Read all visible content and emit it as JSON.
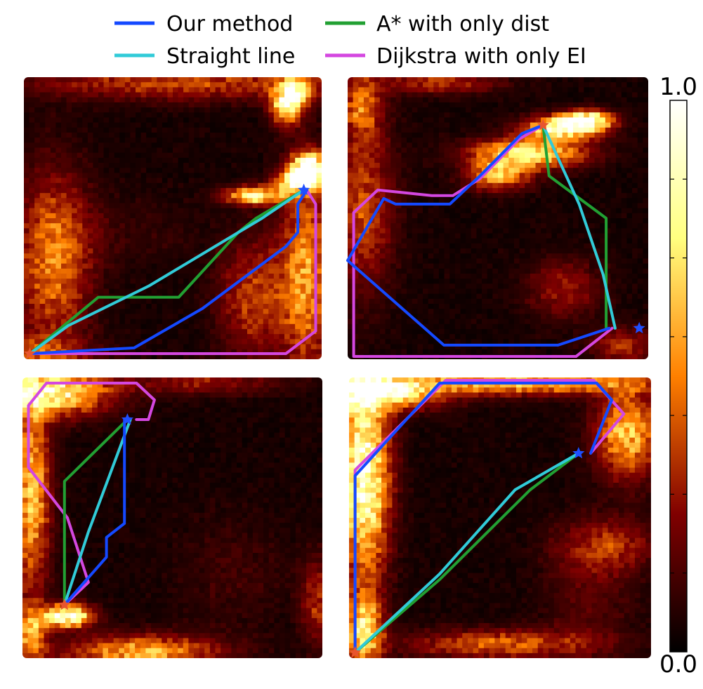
{
  "chart_data": {
    "type": "heatmap",
    "colormap": "afmhot",
    "colorbar": {
      "min": 0.0,
      "max": 1.0,
      "min_label": "0.0",
      "max_label": "1.0"
    },
    "legend": {
      "position": "top-center",
      "items": [
        {
          "key": "our",
          "label": "Our method",
          "color": "#1449ff"
        },
        {
          "key": "astar",
          "label": "A* with only dist",
          "color": "#22a033"
        },
        {
          "key": "straight",
          "label": "Straight line",
          "color": "#31cbd8"
        },
        {
          "key": "dijkstra",
          "label": "Dijkstra with only EI",
          "color": "#d447e0"
        }
      ]
    },
    "panels": [
      {
        "blobs": [
          [
            0.96,
            0.32,
            0.06,
            0.05,
            1.0
          ],
          [
            0.92,
            0.37,
            0.07,
            0.035,
            0.85
          ],
          [
            0.78,
            0.42,
            0.1,
            0.03,
            0.8
          ],
          [
            0.88,
            0.1,
            0.05,
            0.07,
            0.7
          ],
          [
            0.92,
            0.05,
            0.05,
            0.05,
            0.6
          ],
          [
            0.1,
            0.65,
            0.12,
            0.3,
            0.45
          ],
          [
            0.55,
            0.02,
            0.5,
            0.06,
            0.35
          ],
          [
            0.95,
            0.7,
            0.08,
            0.35,
            0.5
          ],
          [
            0.78,
            0.78,
            0.12,
            0.2,
            0.35
          ],
          [
            0.02,
            0.98,
            0.2,
            0.06,
            0.3
          ],
          [
            0.3,
            0.55,
            0.25,
            0.12,
            0.07
          ]
        ],
        "start": [
          0.02,
          0.98
        ],
        "goal": [
          0.94,
          0.4
        ],
        "paths": {
          "straight": [
            [
              0.02,
              0.98
            ],
            [
              0.15,
              0.88
            ],
            [
              0.42,
              0.74
            ],
            [
              0.8,
              0.5
            ],
            [
              0.94,
              0.4
            ]
          ],
          "astar": [
            [
              0.02,
              0.98
            ],
            [
              0.25,
              0.78
            ],
            [
              0.52,
              0.78
            ],
            [
              0.72,
              0.55
            ],
            [
              0.78,
              0.5
            ],
            [
              0.94,
              0.4
            ]
          ],
          "our": [
            [
              0.02,
              0.98
            ],
            [
              0.37,
              0.96
            ],
            [
              0.6,
              0.82
            ],
            [
              0.88,
              0.6
            ],
            [
              0.92,
              0.55
            ],
            [
              0.92,
              0.45
            ],
            [
              0.95,
              0.4
            ]
          ],
          "dijkstra": [
            [
              0.02,
              0.98
            ],
            [
              0.88,
              0.98
            ],
            [
              0.98,
              0.9
            ],
            [
              0.98,
              0.45
            ],
            [
              0.95,
              0.4
            ]
          ]
        }
      },
      {
        "blobs": [
          [
            0.6,
            0.27,
            0.18,
            0.05,
            0.75
          ],
          [
            0.72,
            0.18,
            0.12,
            0.04,
            0.9
          ],
          [
            0.8,
            0.15,
            0.08,
            0.03,
            0.8
          ],
          [
            0.5,
            0.35,
            0.1,
            0.05,
            0.55
          ],
          [
            0.05,
            0.45,
            0.1,
            0.3,
            0.35
          ],
          [
            0.72,
            0.75,
            0.12,
            0.1,
            0.25
          ],
          [
            0.05,
            0.1,
            0.06,
            0.1,
            0.4
          ],
          [
            0.92,
            0.95,
            0.1,
            0.06,
            0.3
          ],
          [
            0.3,
            0.02,
            0.2,
            0.04,
            0.3
          ]
        ],
        "start": [
          0.65,
          0.17
        ],
        "goal": [
          0.97,
          0.89
        ],
        "paths": {
          "straight": [
            [
              0.65,
              0.17
            ],
            [
              0.77,
              0.45
            ],
            [
              0.85,
              0.7
            ],
            [
              0.89,
              0.89
            ]
          ],
          "astar": [
            [
              0.65,
              0.17
            ],
            [
              0.67,
              0.35
            ],
            [
              0.86,
              0.5
            ],
            [
              0.86,
              0.89
            ]
          ],
          "our": [
            [
              0.65,
              0.17
            ],
            [
              0.58,
              0.2
            ],
            [
              0.44,
              0.35
            ],
            [
              0.34,
              0.45
            ],
            [
              0.16,
              0.45
            ],
            [
              0.12,
              0.43
            ],
            [
              0.0,
              0.65
            ],
            [
              0.32,
              0.95
            ],
            [
              0.7,
              0.95
            ],
            [
              0.87,
              0.89
            ]
          ],
          "dijkstra": [
            [
              0.65,
              0.17
            ],
            [
              0.57,
              0.22
            ],
            [
              0.44,
              0.36
            ],
            [
              0.35,
              0.42
            ],
            [
              0.28,
              0.42
            ],
            [
              0.1,
              0.4
            ],
            [
              0.02,
              0.48
            ],
            [
              0.02,
              0.99
            ],
            [
              0.76,
              0.99
            ],
            [
              0.88,
              0.89
            ]
          ]
        }
      },
      {
        "blobs": [
          [
            0.1,
            0.05,
            0.18,
            0.08,
            0.8
          ],
          [
            0.03,
            0.4,
            0.06,
            0.35,
            0.6
          ],
          [
            0.15,
            0.85,
            0.08,
            0.04,
            0.95
          ],
          [
            0.4,
            0.98,
            0.25,
            0.06,
            0.55
          ],
          [
            0.03,
            0.92,
            0.05,
            0.1,
            0.5
          ],
          [
            0.6,
            0.02,
            0.25,
            0.04,
            0.25
          ],
          [
            0.7,
            0.7,
            0.18,
            0.2,
            0.08
          ],
          [
            0.98,
            0.8,
            0.05,
            0.15,
            0.3
          ]
        ],
        "start": [
          0.14,
          0.81
        ],
        "goal": [
          0.35,
          0.15
        ],
        "paths": {
          "straight": [
            [
              0.14,
              0.81
            ],
            [
              0.22,
              0.55
            ],
            [
              0.36,
              0.15
            ]
          ],
          "astar": [
            [
              0.14,
              0.81
            ],
            [
              0.14,
              0.37
            ],
            [
              0.35,
              0.15
            ]
          ],
          "our": [
            [
              0.14,
              0.81
            ],
            [
              0.28,
              0.64
            ],
            [
              0.28,
              0.57
            ],
            [
              0.34,
              0.52
            ],
            [
              0.34,
              0.15
            ]
          ],
          "dijkstra": [
            [
              0.14,
              0.81
            ],
            [
              0.22,
              0.73
            ],
            [
              0.15,
              0.5
            ],
            [
              0.02,
              0.32
            ],
            [
              0.02,
              0.1
            ],
            [
              0.08,
              0.02
            ],
            [
              0.38,
              0.02
            ],
            [
              0.44,
              0.08
            ],
            [
              0.42,
              0.15
            ],
            [
              0.38,
              0.15
            ]
          ]
        }
      },
      {
        "blobs": [
          [
            0.05,
            0.35,
            0.08,
            0.35,
            0.9
          ],
          [
            0.1,
            0.05,
            0.2,
            0.06,
            0.85
          ],
          [
            0.6,
            0.02,
            0.4,
            0.04,
            0.6
          ],
          [
            0.92,
            0.2,
            0.1,
            0.15,
            0.6
          ],
          [
            0.05,
            0.9,
            0.06,
            0.12,
            0.7
          ],
          [
            0.5,
            0.95,
            0.3,
            0.05,
            0.4
          ],
          [
            0.8,
            0.8,
            0.15,
            0.2,
            0.12
          ],
          [
            0.85,
            0.6,
            0.15,
            0.1,
            0.3
          ]
        ],
        "start": [
          0.02,
          0.98
        ],
        "goal": [
          0.76,
          0.27
        ],
        "paths": {
          "straight": [
            [
              0.02,
              0.98
            ],
            [
              0.3,
              0.7
            ],
            [
              0.55,
              0.4
            ],
            [
              0.76,
              0.27
            ]
          ],
          "astar": [
            [
              0.02,
              0.98
            ],
            [
              0.3,
              0.72
            ],
            [
              0.6,
              0.4
            ],
            [
              0.76,
              0.27
            ]
          ],
          "our": [
            [
              0.02,
              0.98
            ],
            [
              0.02,
              0.35
            ],
            [
              0.3,
              0.02
            ],
            [
              0.82,
              0.02
            ],
            [
              0.87,
              0.08
            ],
            [
              0.8,
              0.27
            ]
          ],
          "dijkstra": [
            [
              0.02,
              0.98
            ],
            [
              0.02,
              0.33
            ],
            [
              0.32,
              0.01
            ],
            [
              0.81,
              0.01
            ],
            [
              0.91,
              0.13
            ],
            [
              0.8,
              0.27
            ]
          ]
        }
      }
    ]
  }
}
